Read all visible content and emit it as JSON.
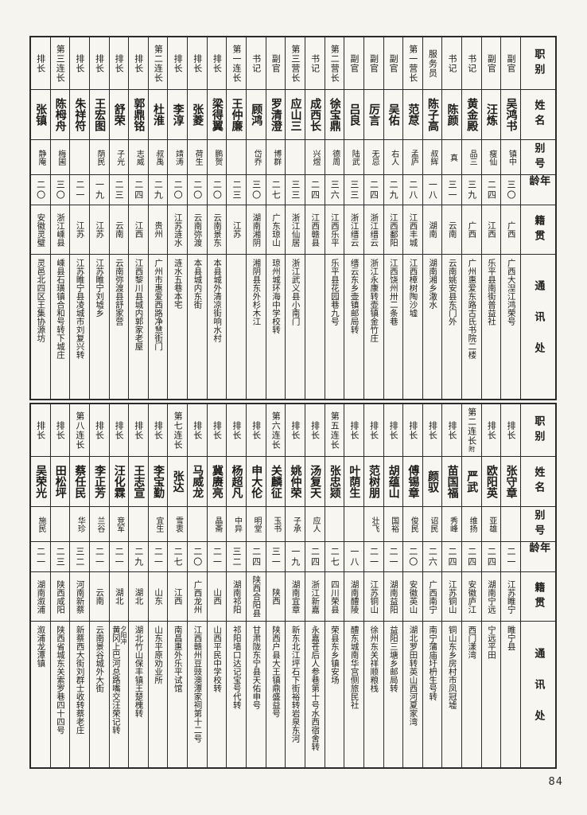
{
  "page": {
    "number": "84"
  },
  "colors": {
    "paper": "#f6f4ee",
    "border": "#2a2a2a",
    "ink": "#1c1b19"
  },
  "row_headers": [
    "职别",
    "姓名",
    "别号",
    "年龄",
    "籍贯",
    "通讯处"
  ],
  "tables": [
    {
      "people": [
        {
          "role": "副官",
          "name": "吴鸿书",
          "alias": "镇中",
          "age": "三〇",
          "origin": "广西",
          "address": "广西大湼江鸿荣号"
        },
        {
          "role": "副官",
          "name": "汪炼",
          "alias": "瘦仙",
          "age": "二四",
          "origin": "江西",
          "address": "乐平县南街普益社"
        },
        {
          "role": "书记",
          "name": "黄金殿",
          "alias": "品三",
          "age": "三九",
          "origin": "广西",
          "address": "广州惠爱东路古氏书院二楼"
        },
        {
          "role": "书记",
          "name": "陈颜",
          "alias": "真",
          "age": "三一",
          "origin": "云南",
          "address": "云南姚安县东门外"
        },
        {
          "role": "服务员",
          "name": "陈子高",
          "alias": "叔辉",
          "age": "一八",
          "origin": "湖南",
          "address": "湖南湘乡潵水"
        },
        {
          "role": "第一营长",
          "name": "范荩",
          "alias": "孟庐",
          "age": "二八",
          "origin": "江西丰城",
          "address": "江西樟树陶沙墟"
        },
        {
          "role": "副官",
          "name": "吴佑",
          "alias": "右人",
          "age": "二九",
          "origin": "江西鄱阳",
          "address": "江西饶州卅二条巷"
        },
        {
          "role": "副官",
          "name": "厉言",
          "alias": "无忌",
          "age": "二四",
          "origin": "浙江缙云",
          "address": "浙江永康转壶镇金竹庄"
        },
        {
          "role": "副官",
          "name": "吕良",
          "alias": "陆武",
          "age": "三三",
          "origin": "浙江缙云",
          "address": "缙云东乡壶镇邮局转"
        },
        {
          "role": "第二营长",
          "name": "徐宝鼎",
          "alias": "德周",
          "age": "三六",
          "origin": "江西乐平",
          "address": "乐平县花园巷九号"
        },
        {
          "role": "书记",
          "name": "成西长",
          "alias": "兴煜",
          "age": "二四",
          "origin": "江西赣县",
          "address": ""
        },
        {
          "role": "第三营长",
          "name": "应山三",
          "alias": "",
          "age": "三三",
          "origin": "浙江仙居",
          "address": "浙江武义县小南门"
        },
        {
          "role": "副官",
          "name": "罗清澄",
          "alias": "博群",
          "age": "二七",
          "origin": "广东琼山",
          "address": "琼州城环海中学校转"
        },
        {
          "role": "书记",
          "name": "顾鸿",
          "alias": "岱乔",
          "age": "三〇",
          "origin": "湖南湘阴",
          "address": "湘阴县东外杉木江"
        },
        {
          "role": "第一连长",
          "name": "王仲廉",
          "alias": "",
          "age": "二三",
          "origin": "江苏",
          "address": ""
        },
        {
          "role": "排长",
          "name": "梁得翼",
          "alias": "鹏贺",
          "age": "二〇",
          "origin": "云南景东",
          "address": "本县城外清凉街响水村"
        },
        {
          "role": "排长",
          "name": "张菱",
          "alias": "荷生",
          "age": "二〇",
          "origin": "云南弥渡",
          "address": "本县城内东街"
        },
        {
          "role": "排长",
          "name": "李淳",
          "alias": "靖涛",
          "age": "二〇",
          "origin": "江苏涟水",
          "address": "涟水五巷本宅"
        },
        {
          "role": "第二连长",
          "name": "杜淮",
          "alias": "叔禹",
          "age": "二九",
          "origin": "贵州",
          "address": "广州市惠爱西路净慧街门"
        },
        {
          "role": "排长",
          "name": "郭鼎铭",
          "alias": "志威",
          "age": "二四",
          "origin": "江西",
          "address": "江西黎川县城内郭家老屋"
        },
        {
          "role": "排长",
          "name": "舒荣",
          "alias": "子光",
          "age": "二三",
          "origin": "云南",
          "address": "云南弥渡县舒家营"
        },
        {
          "role": "排长",
          "name": "王宏图",
          "alias": "荫民",
          "age": "一九",
          "origin": "江苏",
          "address": "江苏睢宁刘墟乡"
        },
        {
          "role": "排长",
          "name": "朱祥符",
          "alias": "",
          "age": "二一",
          "origin": "江苏",
          "address": "江苏睢宁县凌城市刘复兴转"
        },
        {
          "role": "第三连长",
          "name": "陈栂舟",
          "alias": "梅圃",
          "age": "三〇",
          "origin": "浙江嵊县",
          "address": "嵊县石璜镇合和号转下城庄"
        },
        {
          "role": "排长",
          "name": "张镇",
          "alias": "静庵",
          "age": "二〇",
          "origin": "安徽灵璧",
          "address": "灵邑北四区王集协源坊"
        }
      ]
    },
    {
      "people": [
        {
          "role": "排长",
          "name": "张守章",
          "alias": "",
          "age": "二一",
          "origin": "江苏睢宁",
          "address": "睢宁县"
        },
        {
          "role": "排长",
          "name": "欧阳英",
          "alias": "亚雄",
          "age": "二四",
          "origin": "湖南宁远",
          "address": "宁远平田"
        },
        {
          "role": "第二连长",
          "role_note": "附",
          "name": "严武",
          "alias": "维扬",
          "age": "二四",
          "origin": "安徽庐江",
          "address": "西门漾湾"
        },
        {
          "role": "排长",
          "name": "苗国福",
          "alias": "秀峰",
          "age": "二四",
          "origin": "江苏铜山",
          "address": "铜山东乡房村市凤冠墟"
        },
        {
          "role": "排长",
          "name": "颜驭",
          "alias": "诏民",
          "age": "二六",
          "origin": "广西南宁",
          "address": "南宁蒲庙圩枬生号转"
        },
        {
          "role": "排长",
          "name": "傅锡章",
          "alias": "俊民",
          "age": "二〇",
          "origin": "安徽英山",
          "address": "湖北罗田转英山西河夏家湾"
        },
        {
          "role": "排长",
          "name": "胡蕴山",
          "alias": "国裕",
          "age": "二一",
          "origin": "湖南益阳",
          "address": "益阳三塘乡邮局转"
        },
        {
          "role": "排长",
          "name": "范树朋",
          "alias": "壮飞",
          "age": "二一",
          "origin": "江苏铜山",
          "address": "徐州东关祥顺粮栈"
        },
        {
          "role": "排长",
          "name": "叶荫生",
          "alias": "",
          "age": "一八",
          "origin": "湖南醴陵",
          "address": "醴东城南华宫侧旅民社"
        },
        {
          "role": "第五连长",
          "name": "张忠颎",
          "alias": "",
          "age": "二七",
          "origin": "四川荣县",
          "address": "荣县东乡镇安场"
        },
        {
          "role": "排长",
          "name": "汤复天",
          "alias": "应人",
          "age": "二四",
          "origin": "浙江新嘉",
          "address": "永嘉苍后人参巷第十号水西宿舍转"
        },
        {
          "role": "排长",
          "name": "姚仲荣",
          "alias": "子承",
          "age": "一九",
          "origin": "湖南宜章",
          "address": "新东北江坪石下街裕转岩泉东河"
        },
        {
          "role": "第六连长",
          "name": "关麟征",
          "alias": "玉书",
          "age": "三一",
          "origin": "陕西",
          "address": "陕西户县大王镇鼎盛益号"
        },
        {
          "role": "排长",
          "name": "申大伦",
          "alias": "明堂",
          "age": "二四",
          "origin": "陕西合阳县",
          "address": "甘肃陇东宁县天佑申号"
        },
        {
          "role": "排长",
          "name": "杨超凡",
          "alias": "中异",
          "age": "三二",
          "origin": "湖南祁阳",
          "address": "祁阳墙口达记宝号代转"
        },
        {
          "role": "排长",
          "name": "冀赓亮",
          "alias": "晶斋",
          "age": "二一",
          "origin": "山西",
          "address": "山西平民中学校转"
        },
        {
          "role": "排长",
          "name": "马威龙",
          "alias": "",
          "age": "二〇",
          "origin": "广西龙州",
          "address": "江西赣州豆豉澳潭家祠第十二号"
        },
        {
          "role": "第七连长",
          "name": "张达",
          "alias": "雪衷",
          "age": "二七",
          "origin": "江西",
          "address": "南昌惠外乐平试馆"
        },
        {
          "role": "排长",
          "name": "李宝勤",
          "alias": "宜生",
          "age": "二一",
          "origin": "山东",
          "address": "山东平原劝业所"
        },
        {
          "role": "排长",
          "name": "王志宣",
          "alias": "",
          "age": "二九",
          "origin": "湖北",
          "address": "湖北竹山保丰镇王楚槐转"
        },
        {
          "role": "排长",
          "name": "汪化霖",
          "alias": "竞军",
          "age": "二一",
          "origin": "湖北",
          "address": "黄冈上巴河总路嘴交汪荣记转",
          "address_note": "夕阳冲"
        },
        {
          "role": "排长",
          "name": "李正芳",
          "alias": "兰谷",
          "age": "二一",
          "origin": "云南",
          "address": "云南景谷城外大街"
        },
        {
          "role": "第八连长",
          "name": "蔡任民",
          "alias": "华珍",
          "age": "三二",
          "origin": "河南新蔡",
          "address": "新蔡西大街刘群士收转蔡老庄"
        },
        {
          "role": "排长",
          "name": "田松坪",
          "alias": "",
          "age": "二三",
          "origin": "陕西咸阳",
          "address": "陕西省城东关索罗巷四十四号"
        },
        {
          "role": "排长",
          "name": "吴荣光",
          "alias": "施民",
          "age": "二一",
          "origin": "湖南溆浦",
          "address": "溆浦龙潭镇"
        }
      ]
    }
  ]
}
